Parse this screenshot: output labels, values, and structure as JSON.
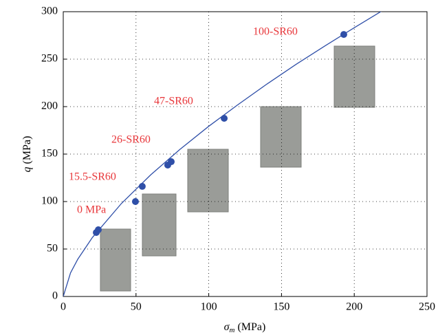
{
  "chart_data": {
    "type": "scatter",
    "x_label": {
      "symbol": "σ",
      "subscript": "m",
      "unit": "(MPa)"
    },
    "y_label": {
      "symbol": "q",
      "unit": "(MPa)"
    },
    "x": [
      22.7,
      24.1,
      49.6,
      54.3,
      71.8,
      74.2,
      110.6,
      192.8
    ],
    "values": [
      67.4,
      70.3,
      100,
      116,
      138.4,
      142,
      187.7,
      276
    ],
    "color": "#2f4fa8",
    "fit": {
      "x": [
        0,
        5,
        10,
        20,
        40,
        60,
        80,
        100,
        120,
        140,
        160,
        180,
        200,
        220
      ],
      "values": [
        0,
        24.9,
        39.3,
        62.1,
        98,
        128,
        154.7,
        179.3,
        202,
        223.8,
        244.5,
        264.1,
        283.1,
        301.7
      ],
      "color": "#2f4fa8"
    },
    "annotations": [
      "0 MPa",
      "15.5-SR60",
      "26-SR60",
      "47-SR60",
      "100-SR60"
    ],
    "annotation_color": "#e8363a",
    "xlim": [
      0,
      250
    ],
    "xticks": [
      0,
      50,
      100,
      150,
      200,
      250
    ],
    "ylim": [
      0,
      300
    ],
    "yticks": [
      0,
      50,
      100,
      150,
      200,
      250,
      300
    ],
    "grid": true
  }
}
